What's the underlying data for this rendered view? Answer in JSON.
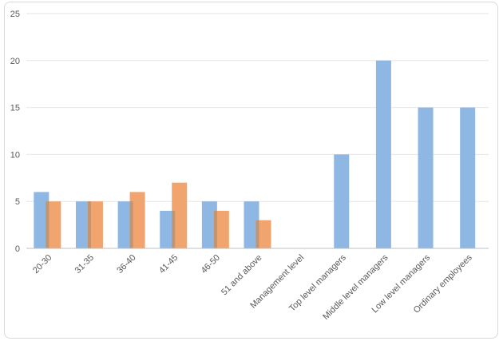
{
  "chart_data": {
    "type": "bar",
    "categories": [
      "20-30",
      "31-35",
      "36-40",
      "41-45",
      "46-50",
      "51 and above",
      "Management level",
      "Top level managers",
      "Middle level managers",
      "Low level managers",
      "Ordinary employees"
    ],
    "series": [
      {
        "values": [
          6,
          5,
          5,
          4,
          5,
          5,
          0,
          10,
          20,
          15,
          15
        ],
        "color": "#8FB7E3"
      },
      {
        "values": [
          5,
          5,
          6,
          7,
          4,
          3,
          null,
          null,
          null,
          null,
          null
        ],
        "color": "#F2A46E"
      }
    ],
    "yticks": [
      "0",
      "5",
      "10",
      "15",
      "20",
      "25"
    ],
    "ylim": [
      0,
      25
    ],
    "title": "",
    "xlabel": "",
    "ylabel": "",
    "grid": true,
    "legend": "none",
    "gridline_color": "#e6e6e6",
    "overlap_color": "#C0956F"
  }
}
